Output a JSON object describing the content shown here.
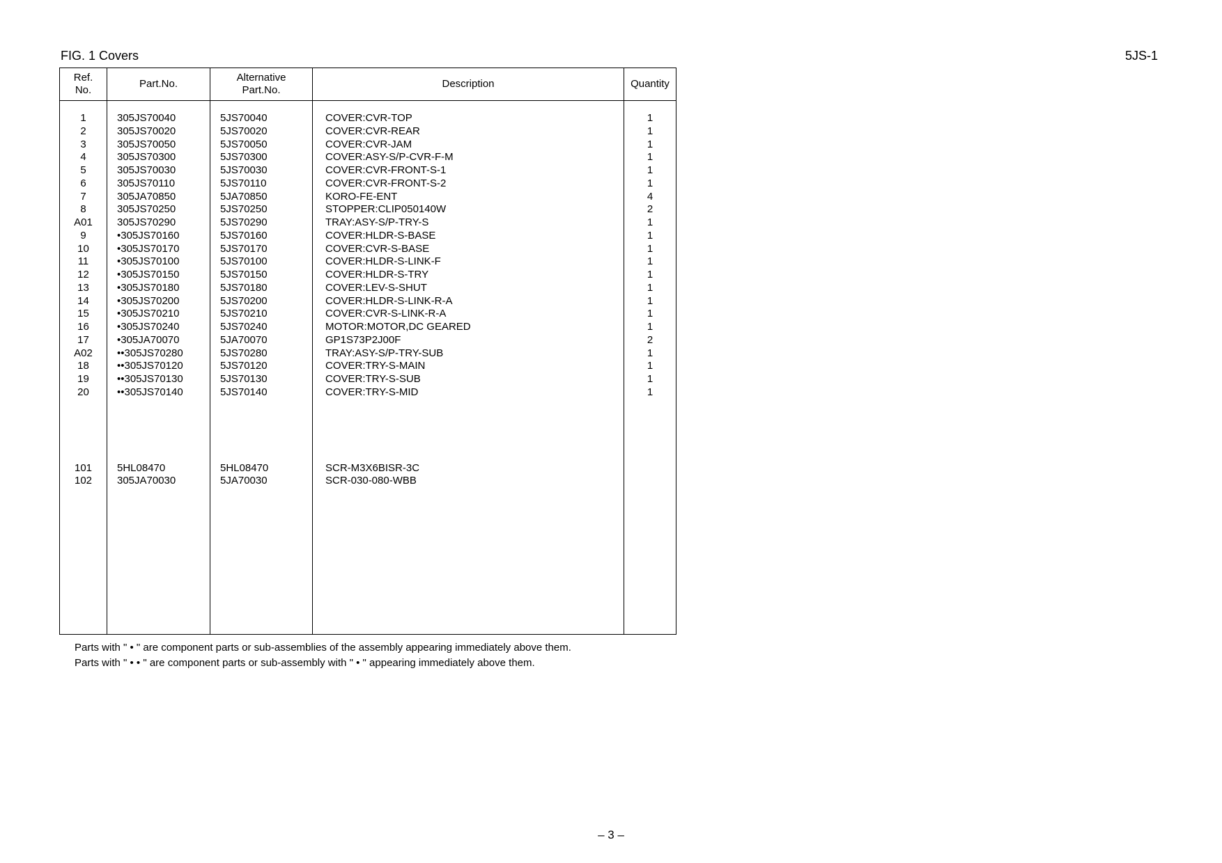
{
  "header": {
    "fig_title": "FIG.   1   Covers",
    "model_code": "5JS-1"
  },
  "table": {
    "columns": {
      "ref": "Ref.\nNo.",
      "part": "Part.No.",
      "alt": "Alternative\nPart.No.",
      "desc": "Description",
      "qty": "Quantity"
    },
    "rows": [
      {
        "ref": "1",
        "part": "305JS70040",
        "alt": "5JS70040",
        "desc": "COVER:CVR-TOP",
        "qty": "1"
      },
      {
        "ref": "2",
        "part": "305JS70020",
        "alt": "5JS70020",
        "desc": "COVER:CVR-REAR",
        "qty": "1"
      },
      {
        "ref": "3",
        "part": "305JS70050",
        "alt": "5JS70050",
        "desc": "COVER:CVR-JAM",
        "qty": "1"
      },
      {
        "ref": "4",
        "part": "305JS70300",
        "alt": "5JS70300",
        "desc": "COVER:ASY-S/P-CVR-F-M",
        "qty": "1"
      },
      {
        "ref": "5",
        "part": "305JS70030",
        "alt": "5JS70030",
        "desc": "COVER:CVR-FRONT-S-1",
        "qty": "1"
      },
      {
        "ref": "6",
        "part": "305JS70110",
        "alt": "5JS70110",
        "desc": "COVER:CVR-FRONT-S-2",
        "qty": "1"
      },
      {
        "ref": "7",
        "part": "305JA70850",
        "alt": "5JA70850",
        "desc": "KORO-FE-ENT",
        "qty": "4"
      },
      {
        "ref": "8",
        "part": "305JS70250",
        "alt": "5JS70250",
        "desc": "STOPPER:CLIP050140W",
        "qty": "2"
      },
      {
        "ref": "A01",
        "part": "305JS70290",
        "alt": "5JS70290",
        "desc": "TRAY:ASY-S/P-TRY-S",
        "qty": "1"
      },
      {
        "ref": "9",
        "part": "•305JS70160",
        "alt": "5JS70160",
        "desc": "COVER:HLDR-S-BASE",
        "qty": "1"
      },
      {
        "ref": "10",
        "part": "•305JS70170",
        "alt": "5JS70170",
        "desc": "COVER:CVR-S-BASE",
        "qty": "1"
      },
      {
        "ref": "11",
        "part": "•305JS70100",
        "alt": "5JS70100",
        "desc": "COVER:HLDR-S-LINK-F",
        "qty": "1"
      },
      {
        "ref": "12",
        "part": "•305JS70150",
        "alt": "5JS70150",
        "desc": "COVER:HLDR-S-TRY",
        "qty": "1"
      },
      {
        "ref": "13",
        "part": "•305JS70180",
        "alt": "5JS70180",
        "desc": "COVER:LEV-S-SHUT",
        "qty": "1"
      },
      {
        "ref": "14",
        "part": "•305JS70200",
        "alt": "5JS70200",
        "desc": "COVER:HLDR-S-LINK-R-A",
        "qty": "1"
      },
      {
        "ref": "15",
        "part": "•305JS70210",
        "alt": "5JS70210",
        "desc": "COVER:CVR-S-LINK-R-A",
        "qty": "1"
      },
      {
        "ref": "16",
        "part": "•305JS70240",
        "alt": "5JS70240",
        "desc": "MOTOR:MOTOR,DC GEARED",
        "qty": "1"
      },
      {
        "ref": "17",
        "part": "•305JA70070",
        "alt": "5JA70070",
        "desc": "GP1S73P2J00F",
        "qty": "2"
      },
      {
        "ref": "A02",
        "part": "••305JS70280",
        "alt": "5JS70280",
        "desc": "TRAY:ASY-S/P-TRY-SUB",
        "qty": "1"
      },
      {
        "ref": "18",
        "part": "••305JS70120",
        "alt": "5JS70120",
        "desc": "COVER:TRY-S-MAIN",
        "qty": "1"
      },
      {
        "ref": "19",
        "part": "••305JS70130",
        "alt": "5JS70130",
        "desc": "COVER:TRY-S-SUB",
        "qty": "1"
      },
      {
        "ref": "20",
        "part": "••305JS70140",
        "alt": "5JS70140",
        "desc": "COVER:TRY-S-MID",
        "qty": "1"
      }
    ],
    "rows2": [
      {
        "ref": "101",
        "part": "5HL08470",
        "alt": "5HL08470",
        "desc": "SCR-M3X6BISR-3C",
        "qty": ""
      },
      {
        "ref": "102",
        "part": "305JA70030",
        "alt": "5JA70030",
        "desc": "SCR-030-080-WBB",
        "qty": ""
      }
    ]
  },
  "footnotes": {
    "line1": "Parts with \" • \" are component parts or sub-assemblies of the assembly appearing immediately above them.",
    "line2": "Parts with \" • • \" are component parts or sub-assembly with \" • \" appearing immediately above them."
  },
  "page_number": "– 3 –"
}
